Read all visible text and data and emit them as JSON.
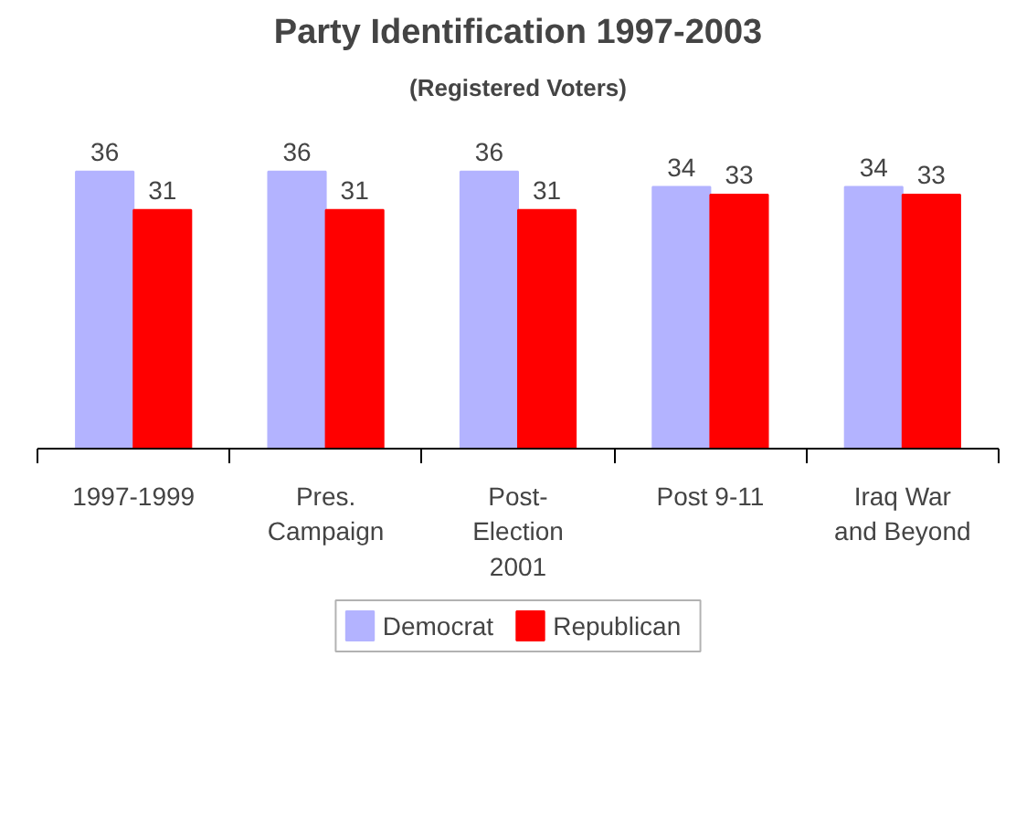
{
  "chart_data": {
    "type": "bar",
    "title": "Party Identification 1997-2003",
    "subtitle": "(Registered Voters)",
    "categories": [
      "1997-1999",
      "Pres.\nCampaign",
      "Post-\nElection\n2001",
      "Post 9-11",
      "Iraq War\nand Beyond"
    ],
    "series": [
      {
        "name": "Democrat",
        "color": "#b3b3ff",
        "values": [
          36,
          36,
          36,
          34,
          34
        ]
      },
      {
        "name": "Republican",
        "color": "#ff0000",
        "values": [
          31,
          31,
          31,
          33,
          33
        ]
      }
    ],
    "data_labels": true,
    "grid": false,
    "legend": "bottom"
  }
}
